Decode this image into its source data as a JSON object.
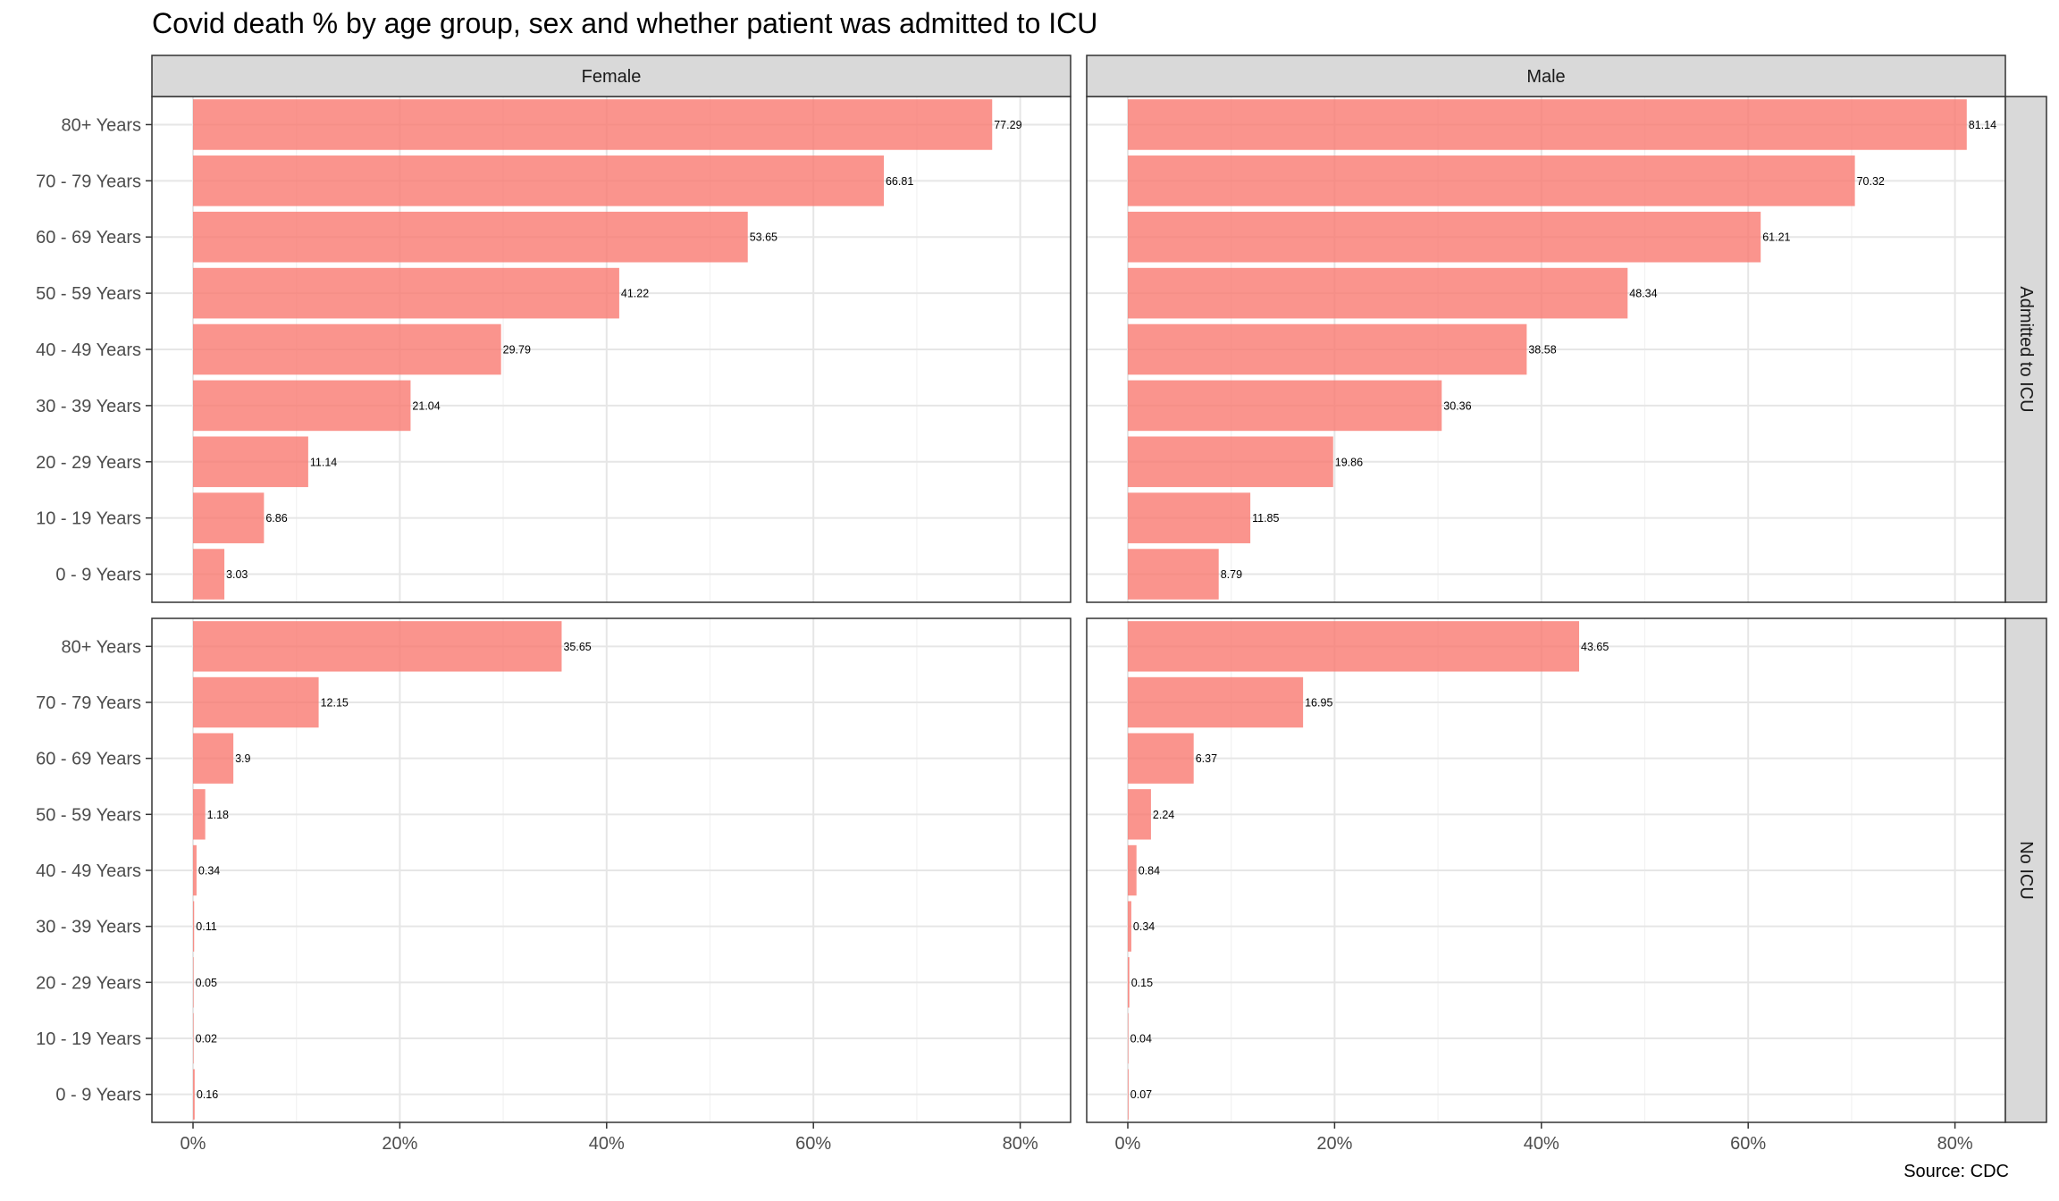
{
  "chart_data": {
    "type": "bar",
    "orientation": "horizontal",
    "title": "Covid death % by age group, sex and whether patient was admitted to ICU",
    "caption": "Source: CDC",
    "categories": [
      "0 - 9 Years",
      "10 - 19 Years",
      "20 - 29 Years",
      "30 - 39 Years",
      "40 - 49 Years",
      "50 - 59 Years",
      "60 - 69 Years",
      "70 - 79 Years",
      "80+ Years"
    ],
    "column_facets": [
      "Female",
      "Male"
    ],
    "row_facets": [
      "Admitted to ICU",
      "No ICU"
    ],
    "xlim": [
      0,
      85
    ],
    "x_ticks": [
      0,
      20,
      40,
      60,
      80
    ],
    "x_tick_labels": [
      "0%",
      "20%",
      "40%",
      "60%",
      "80%"
    ],
    "grid": true,
    "bar_color": "#f8766d",
    "panels": [
      {
        "sex": "Female",
        "icu": "Admitted to ICU",
        "values": [
          3.03,
          6.86,
          11.14,
          21.04,
          29.79,
          41.22,
          53.65,
          66.81,
          77.29
        ]
      },
      {
        "sex": "Male",
        "icu": "Admitted to ICU",
        "values": [
          8.79,
          11.85,
          19.86,
          30.36,
          38.58,
          48.34,
          61.21,
          70.32,
          81.14
        ]
      },
      {
        "sex": "Female",
        "icu": "No ICU",
        "values": [
          0.16,
          0.02,
          0.05,
          0.11,
          0.34,
          1.18,
          3.9,
          12.15,
          35.65
        ]
      },
      {
        "sex": "Male",
        "icu": "No ICU",
        "values": [
          0.07,
          0.04,
          0.15,
          0.34,
          0.84,
          2.24,
          6.37,
          16.95,
          43.65
        ]
      }
    ]
  }
}
